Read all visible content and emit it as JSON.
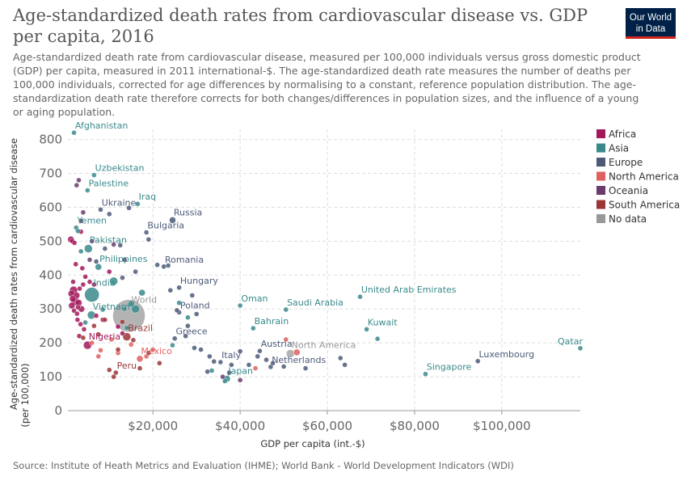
{
  "title": "Age-standardized death rates from cardiovascular disease vs. GDP per capita, 2016",
  "subtitle": "Age-standardized death rate from cardiovascular disease, measured per 100,000 individuals versus gross domestic product (GDP) per capita, measured in 2011 international-$. The age-standardized death rate measures the number of deaths per 100,000 individuals, corrected for age differences by normalising to a constant, reference population distribution. The age-standardization death rate therefore corrects for both changes/differences in population sizes, and the influence of a young or aging population.",
  "logo": {
    "line1": "Our World",
    "line2": "in Data"
  },
  "source": "Source: Institute of Heath Metrics and Evaluation (IHME); World Bank - World Development Indicators (WDI)",
  "chart_data": {
    "type": "scatter",
    "title": "Age-standardized death rates from cardiovascular disease vs. GDP per capita, 2016",
    "xlabel": "GDP per capita (int.-$)",
    "ylabel": "Age-standardized death rates from cardiovascular disease (per 100,000)",
    "x_scale": "linear",
    "xlim": [
      500,
      118000
    ],
    "ylim": [
      0,
      830
    ],
    "x_ticks": [
      20000,
      40000,
      60000,
      80000,
      100000
    ],
    "x_tick_labels": [
      "$20,000",
      "$40,000",
      "$60,000",
      "$80,000",
      "$100,000"
    ],
    "y_ticks": [
      0,
      100,
      200,
      300,
      400,
      500,
      600,
      700,
      800
    ],
    "grid": true,
    "legend_position": "right",
    "legend": [
      {
        "name": "Africa",
        "color": "#a2185b"
      },
      {
        "name": "Asia",
        "color": "#3a8a8c"
      },
      {
        "name": "Europe",
        "color": "#4c5a78"
      },
      {
        "name": "North America",
        "color": "#e06060"
      },
      {
        "name": "Oceania",
        "color": "#6b3b6e"
      },
      {
        "name": "South America",
        "color": "#9c3535"
      },
      {
        "name": "No data",
        "color": "#999999"
      }
    ],
    "points": [
      {
        "label": "Afghanistan",
        "region": "Asia",
        "x": 1900,
        "y": 820,
        "r": 3
      },
      {
        "label": "Uzbekistan",
        "region": "Asia",
        "x": 6500,
        "y": 695,
        "r": 3
      },
      {
        "label": "Palestine",
        "region": "Asia",
        "x": 5000,
        "y": 650,
        "r": 3
      },
      {
        "label": "Iraq",
        "region": "Asia",
        "x": 16500,
        "y": 610,
        "r": 3
      },
      {
        "label": "Ukraine",
        "region": "Europe",
        "x": 8000,
        "y": 593,
        "r": 3
      },
      {
        "label": "Russia",
        "region": "Europe",
        "x": 24500,
        "y": 562,
        "r": 4
      },
      {
        "label": "Yemen",
        "region": "Asia",
        "x": 2400,
        "y": 540,
        "r": 3
      },
      {
        "label": "Bulgaria",
        "region": "Europe",
        "x": 18500,
        "y": 526,
        "r": 3
      },
      {
        "label": "Pakistan",
        "region": "Asia",
        "x": 5200,
        "y": 478,
        "r": 5
      },
      {
        "label": "Philippines",
        "region": "Asia",
        "x": 7500,
        "y": 424,
        "r": 4
      },
      {
        "label": "Romania",
        "region": "Europe",
        "x": 22500,
        "y": 425,
        "r": 3
      },
      {
        "label": "India",
        "region": "Asia",
        "x": 6000,
        "y": 342,
        "r": 9
      },
      {
        "label": "Hungary",
        "region": "Europe",
        "x": 26000,
        "y": 363,
        "r": 3
      },
      {
        "label": "World",
        "region": "No data",
        "x": 14500,
        "y": 280,
        "r": 20
      },
      {
        "label": "Vietnam",
        "region": "Asia",
        "x": 5900,
        "y": 282,
        "r": 5
      },
      {
        "label": "Poland",
        "region": "Europe",
        "x": 26000,
        "y": 290,
        "r": 3
      },
      {
        "label": "Oman",
        "region": "Asia",
        "x": 40000,
        "y": 310,
        "r": 3
      },
      {
        "label": "Saudi Arabia",
        "region": "Asia",
        "x": 50500,
        "y": 298,
        "r": 3
      },
      {
        "label": "United Arab Emirates",
        "region": "Asia",
        "x": 67500,
        "y": 336,
        "r": 3
      },
      {
        "label": "Brazil",
        "region": "South America",
        "x": 14000,
        "y": 218,
        "r": 5
      },
      {
        "label": "Greece",
        "region": "Europe",
        "x": 25000,
        "y": 213,
        "r": 3
      },
      {
        "label": "Bahrain",
        "region": "Asia",
        "x": 43000,
        "y": 243,
        "r": 3
      },
      {
        "label": "Kuwait",
        "region": "Asia",
        "x": 69000,
        "y": 240,
        "r": 3
      },
      {
        "label": "Nigeria",
        "region": "Africa",
        "x": 5000,
        "y": 193,
        "r": 5
      },
      {
        "label": "Austria",
        "region": "Europe",
        "x": 44500,
        "y": 176,
        "r": 3
      },
      {
        "label": "North America",
        "region": "No data",
        "x": 51500,
        "y": 168,
        "r": 5
      },
      {
        "label": "Qatar",
        "region": "Asia",
        "x": 118000,
        "y": 184,
        "r": 3
      },
      {
        "label": "Mexico",
        "region": "North America",
        "x": 17000,
        "y": 153,
        "r": 4
      },
      {
        "label": "Italy",
        "region": "Europe",
        "x": 35500,
        "y": 143,
        "r": 3
      },
      {
        "label": "Netherlands",
        "region": "Europe",
        "x": 47000,
        "y": 129,
        "r": 3
      },
      {
        "label": "Luxembourg",
        "region": "Europe",
        "x": 94500,
        "y": 146,
        "r": 3
      },
      {
        "label": "Peru",
        "region": "South America",
        "x": 11500,
        "y": 112,
        "r": 3
      },
      {
        "label": "Japan",
        "region": "Asia",
        "x": 37000,
        "y": 94,
        "r": 4
      },
      {
        "label": "Singapore",
        "region": "Asia",
        "x": 82500,
        "y": 108,
        "r": 3
      },
      {
        "region": "Africa",
        "x": 1200,
        "y": 505,
        "r": 4
      },
      {
        "region": "Africa",
        "x": 1500,
        "y": 500,
        "r": 3
      },
      {
        "region": "Africa",
        "x": 2000,
        "y": 495,
        "r": 3
      },
      {
        "region": "Africa",
        "x": 1800,
        "y": 355,
        "r": 5
      },
      {
        "region": "Africa",
        "x": 1300,
        "y": 345,
        "r": 4
      },
      {
        "region": "Africa",
        "x": 2500,
        "y": 340,
        "r": 4
      },
      {
        "region": "Africa",
        "x": 1600,
        "y": 330,
        "r": 4
      },
      {
        "region": "Africa",
        "x": 2200,
        "y": 322,
        "r": 5
      },
      {
        "region": "Africa",
        "x": 3000,
        "y": 318,
        "r": 4
      },
      {
        "region": "Africa",
        "x": 1400,
        "y": 310,
        "r": 4
      },
      {
        "region": "Africa",
        "x": 2800,
        "y": 305,
        "r": 3
      },
      {
        "region": "Africa",
        "x": 3600,
        "y": 300,
        "r": 4
      },
      {
        "region": "Africa",
        "x": 1900,
        "y": 295,
        "r": 3
      },
      {
        "region": "Africa",
        "x": 2600,
        "y": 286,
        "r": 3
      },
      {
        "region": "Africa",
        "x": 3200,
        "y": 360,
        "r": 3
      },
      {
        "region": "Africa",
        "x": 4000,
        "y": 372,
        "r": 3
      },
      {
        "region": "Africa",
        "x": 3800,
        "y": 420,
        "r": 3
      },
      {
        "region": "Africa",
        "x": 2300,
        "y": 432,
        "r": 3
      },
      {
        "region": "Africa",
        "x": 4500,
        "y": 395,
        "r": 3
      },
      {
        "region": "Africa",
        "x": 5500,
        "y": 380,
        "r": 3
      },
      {
        "region": "Africa",
        "x": 6500,
        "y": 372,
        "r": 3
      },
      {
        "region": "Africa",
        "x": 2700,
        "y": 268,
        "r": 3
      },
      {
        "region": "Africa",
        "x": 3400,
        "y": 255,
        "r": 3
      },
      {
        "region": "Africa",
        "x": 4200,
        "y": 240,
        "r": 3
      },
      {
        "region": "Africa",
        "x": 7000,
        "y": 280,
        "r": 3
      },
      {
        "region": "Africa",
        "x": 8500,
        "y": 268,
        "r": 3
      },
      {
        "region": "Africa",
        "x": 10000,
        "y": 410,
        "r": 3
      },
      {
        "region": "Africa",
        "x": 12000,
        "y": 248,
        "r": 3
      },
      {
        "region": "Africa",
        "x": 13000,
        "y": 228,
        "r": 3
      },
      {
        "region": "Africa",
        "x": 3100,
        "y": 220,
        "r": 3
      },
      {
        "region": "Africa",
        "x": 1700,
        "y": 380,
        "r": 3
      },
      {
        "region": "Africa",
        "x": 3500,
        "y": 528,
        "r": 3
      },
      {
        "region": "Asia",
        "x": 2800,
        "y": 530,
        "r": 3
      },
      {
        "region": "Asia",
        "x": 11000,
        "y": 382,
        "r": 5
      },
      {
        "region": "Asia",
        "x": 17500,
        "y": 348,
        "r": 4
      },
      {
        "region": "Asia",
        "x": 16000,
        "y": 300,
        "r": 5
      },
      {
        "region": "Asia",
        "x": 15000,
        "y": 315,
        "r": 4
      },
      {
        "region": "Asia",
        "x": 13500,
        "y": 300,
        "r": 3
      },
      {
        "region": "Asia",
        "x": 8500,
        "y": 298,
        "r": 3
      },
      {
        "region": "Asia",
        "x": 4500,
        "y": 260,
        "r": 3
      },
      {
        "region": "Asia",
        "x": 24500,
        "y": 193,
        "r": 3
      },
      {
        "region": "Asia",
        "x": 33500,
        "y": 118,
        "r": 3
      },
      {
        "region": "Asia",
        "x": 26000,
        "y": 318,
        "r": 3
      },
      {
        "region": "Asia",
        "x": 71500,
        "y": 212,
        "r": 3
      },
      {
        "region": "Asia",
        "x": 36500,
        "y": 87,
        "r": 3
      },
      {
        "region": "Asia",
        "x": 28000,
        "y": 275,
        "r": 3
      },
      {
        "region": "Asia",
        "x": 14000,
        "y": 244,
        "r": 3
      },
      {
        "region": "Asia",
        "x": 3500,
        "y": 470,
        "r": 3
      },
      {
        "region": "Europe",
        "x": 10000,
        "y": 580,
        "r": 3
      },
      {
        "region": "Europe",
        "x": 14500,
        "y": 598,
        "r": 3
      },
      {
        "region": "Europe",
        "x": 19000,
        "y": 505,
        "r": 3
      },
      {
        "region": "Europe",
        "x": 21000,
        "y": 430,
        "r": 3
      },
      {
        "region": "Europe",
        "x": 23500,
        "y": 428,
        "r": 3
      },
      {
        "region": "Europe",
        "x": 9000,
        "y": 478,
        "r": 3
      },
      {
        "region": "Europe",
        "x": 12500,
        "y": 488,
        "r": 3
      },
      {
        "region": "Europe",
        "x": 16000,
        "y": 410,
        "r": 3
      },
      {
        "region": "Europe",
        "x": 13000,
        "y": 392,
        "r": 3
      },
      {
        "region": "Europe",
        "x": 24000,
        "y": 355,
        "r": 3
      },
      {
        "region": "Europe",
        "x": 29000,
        "y": 340,
        "r": 3
      },
      {
        "region": "Europe",
        "x": 30000,
        "y": 285,
        "r": 3
      },
      {
        "region": "Europe",
        "x": 29500,
        "y": 185,
        "r": 3
      },
      {
        "region": "Europe",
        "x": 31000,
        "y": 180,
        "r": 3
      },
      {
        "region": "Europe",
        "x": 33000,
        "y": 160,
        "r": 3
      },
      {
        "region": "Europe",
        "x": 34000,
        "y": 145,
        "r": 3
      },
      {
        "region": "Europe",
        "x": 38000,
        "y": 135,
        "r": 3
      },
      {
        "region": "Europe",
        "x": 40000,
        "y": 175,
        "r": 3
      },
      {
        "region": "Europe",
        "x": 42000,
        "y": 135,
        "r": 3
      },
      {
        "region": "Europe",
        "x": 44000,
        "y": 160,
        "r": 3
      },
      {
        "region": "Europe",
        "x": 46000,
        "y": 150,
        "r": 3
      },
      {
        "region": "Europe",
        "x": 47500,
        "y": 140,
        "r": 3
      },
      {
        "region": "Europe",
        "x": 50000,
        "y": 130,
        "r": 3
      },
      {
        "region": "Europe",
        "x": 55000,
        "y": 125,
        "r": 3
      },
      {
        "region": "Europe",
        "x": 63000,
        "y": 155,
        "r": 3
      },
      {
        "region": "Europe",
        "x": 64000,
        "y": 135,
        "r": 3
      },
      {
        "region": "Europe",
        "x": 37500,
        "y": 112,
        "r": 3
      },
      {
        "region": "Europe",
        "x": 28000,
        "y": 250,
        "r": 3
      },
      {
        "region": "Europe",
        "x": 27500,
        "y": 220,
        "r": 3
      },
      {
        "region": "Europe",
        "x": 25500,
        "y": 296,
        "r": 3
      },
      {
        "region": "Europe",
        "x": 32500,
        "y": 115,
        "r": 3
      },
      {
        "region": "Europe",
        "x": 7000,
        "y": 440,
        "r": 3
      },
      {
        "region": "North America",
        "x": 53000,
        "y": 172,
        "r": 4
      },
      {
        "region": "North America",
        "x": 50500,
        "y": 210,
        "r": 3
      },
      {
        "region": "North America",
        "x": 20000,
        "y": 180,
        "r": 3
      },
      {
        "region": "North America",
        "x": 15000,
        "y": 195,
        "r": 3
      },
      {
        "region": "North America",
        "x": 12000,
        "y": 170,
        "r": 3
      },
      {
        "region": "North America",
        "x": 8000,
        "y": 178,
        "r": 3
      },
      {
        "region": "North America",
        "x": 18500,
        "y": 160,
        "r": 3
      },
      {
        "region": "North America",
        "x": 7500,
        "y": 160,
        "r": 3
      },
      {
        "region": "North America",
        "x": 43500,
        "y": 125,
        "r": 3
      },
      {
        "region": "North America",
        "x": 10500,
        "y": 210,
        "r": 3
      },
      {
        "region": "North America",
        "x": 6000,
        "y": 200,
        "r": 3
      },
      {
        "region": "Oceania",
        "x": 2500,
        "y": 665,
        "r": 3
      },
      {
        "region": "Oceania",
        "x": 3000,
        "y": 680,
        "r": 3
      },
      {
        "region": "Oceania",
        "x": 4000,
        "y": 585,
        "r": 3
      },
      {
        "region": "Oceania",
        "x": 3500,
        "y": 560,
        "r": 3
      },
      {
        "region": "Oceania",
        "x": 6000,
        "y": 500,
        "r": 3
      },
      {
        "region": "Oceania",
        "x": 5500,
        "y": 445,
        "r": 3
      },
      {
        "region": "Oceania",
        "x": 11000,
        "y": 490,
        "r": 3
      },
      {
        "region": "Oceania",
        "x": 13500,
        "y": 445,
        "r": 3
      },
      {
        "region": "Oceania",
        "x": 40000,
        "y": 90,
        "r": 3
      },
      {
        "region": "Oceania",
        "x": 36000,
        "y": 100,
        "r": 3
      },
      {
        "region": "South America",
        "x": 6500,
        "y": 250,
        "r": 3
      },
      {
        "region": "South America",
        "x": 7500,
        "y": 225,
        "r": 3
      },
      {
        "region": "South America",
        "x": 9000,
        "y": 268,
        "r": 3
      },
      {
        "region": "South America",
        "x": 12000,
        "y": 180,
        "r": 3
      },
      {
        "region": "South America",
        "x": 13000,
        "y": 262,
        "r": 3
      },
      {
        "region": "South America",
        "x": 15500,
        "y": 208,
        "r": 3
      },
      {
        "region": "South America",
        "x": 19000,
        "y": 170,
        "r": 3
      },
      {
        "region": "South America",
        "x": 21500,
        "y": 140,
        "r": 3
      },
      {
        "region": "South America",
        "x": 10000,
        "y": 120,
        "r": 3
      },
      {
        "region": "South America",
        "x": 11000,
        "y": 100,
        "r": 3
      },
      {
        "region": "South America",
        "x": 17000,
        "y": 125,
        "r": 3
      },
      {
        "region": "South America",
        "x": 4000,
        "y": 215,
        "r": 3
      }
    ]
  }
}
